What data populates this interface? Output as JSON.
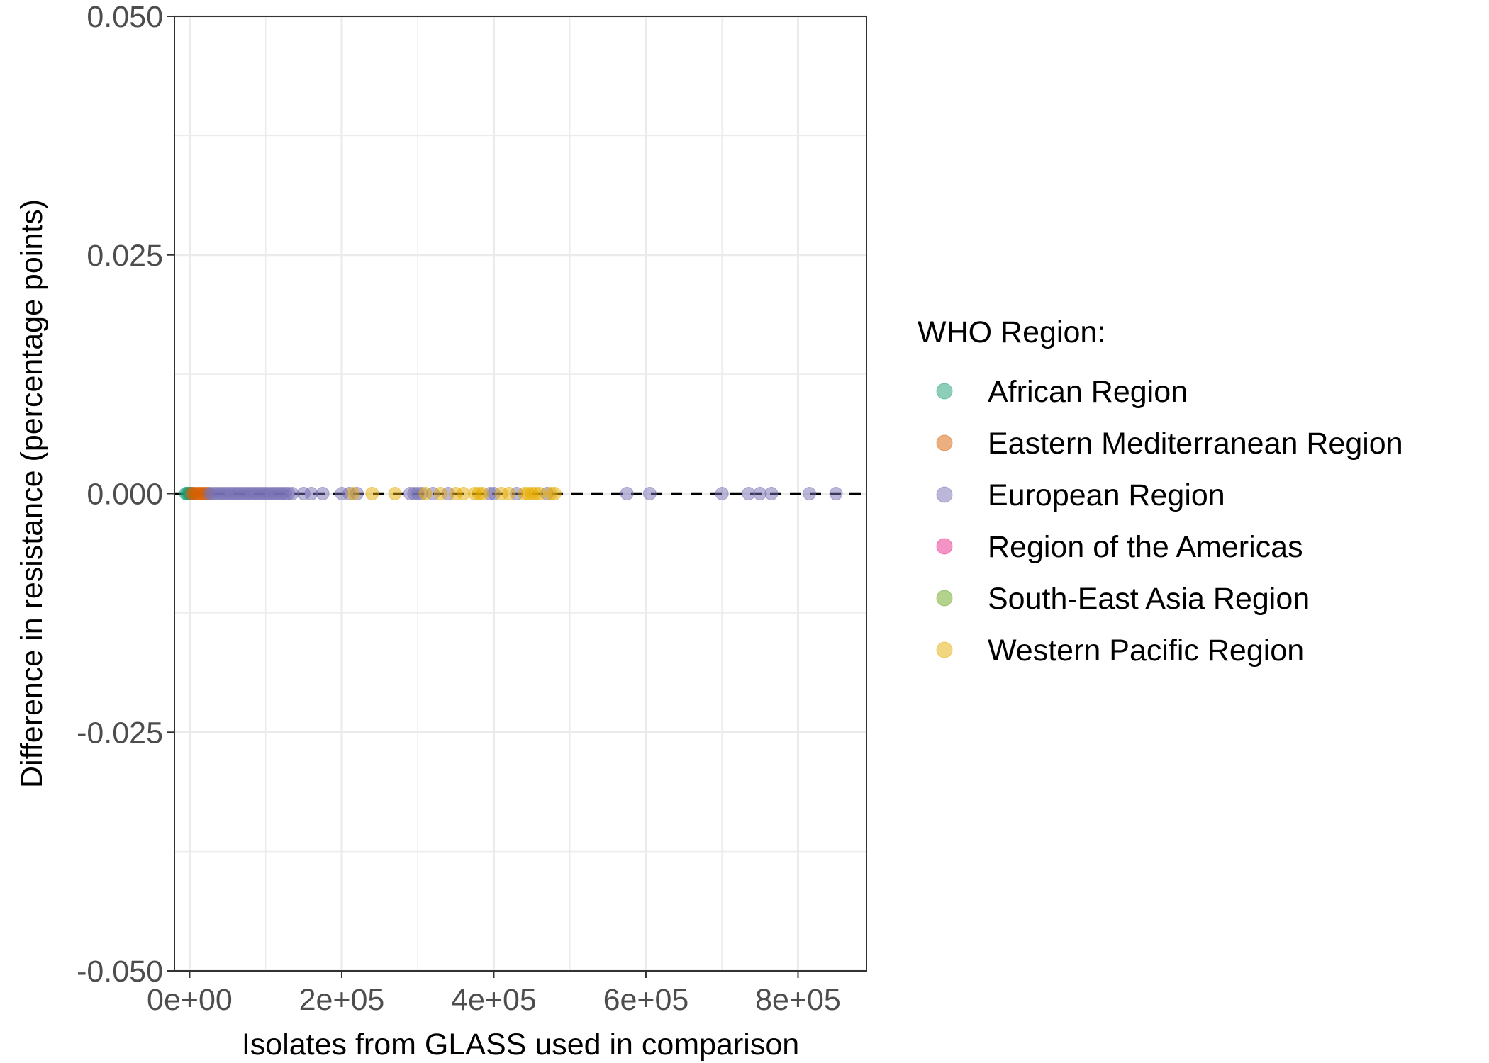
{
  "chart_data": {
    "type": "scatter",
    "xlabel": "Isolates from GLASS used in comparison",
    "ylabel": "Difference in resistance (percentage points)",
    "xlim": [
      -20000,
      890000
    ],
    "ylim": [
      -0.05,
      0.05
    ],
    "x_ticks": [
      {
        "value": 0,
        "label": "0e+00"
      },
      {
        "value": 200000,
        "label": "2e+05"
      },
      {
        "value": 400000,
        "label": "4e+05"
      },
      {
        "value": 600000,
        "label": "6e+05"
      },
      {
        "value": 800000,
        "label": "8e+05"
      }
    ],
    "y_ticks": [
      {
        "value": 0.05,
        "label": "0.050"
      },
      {
        "value": 0.025,
        "label": "0.025"
      },
      {
        "value": 0,
        "label": "0.000"
      },
      {
        "value": -0.025,
        "label": "-0.025"
      },
      {
        "value": -0.05,
        "label": "-0.050"
      }
    ],
    "grid": true,
    "reference_line": {
      "y": 0,
      "style": "dashed",
      "color": "#000000"
    },
    "legend": {
      "title": "WHO Region:",
      "placement": "right",
      "entries": [
        {
          "label": "African Region",
          "color": "#1b9e77"
        },
        {
          "label": "Eastern Mediterranean Region",
          "color": "#d95f02"
        },
        {
          "label": "European Region",
          "color": "#7570b3"
        },
        {
          "label": "Region of the Americas",
          "color": "#e7298a"
        },
        {
          "label": "South-East Asia Region",
          "color": "#66a61e"
        },
        {
          "label": "Western Pacific Region",
          "color": "#e6ab02"
        }
      ]
    },
    "series": [
      {
        "region": "African Region",
        "color": "#1b9e77",
        "x": [
          -5000,
          -3000,
          -1000,
          500,
          1500,
          2500
        ]
      },
      {
        "region": "Eastern Mediterranean Region",
        "color": "#d95f02",
        "x": [
          3000,
          6000,
          9000,
          12000,
          15000,
          18000,
          21000,
          24000
        ]
      },
      {
        "region": "European Region",
        "color": "#7570b3",
        "x": [
          26000,
          30000,
          34000,
          38000,
          42000,
          46000,
          50000,
          54000,
          58000,
          62000,
          66000,
          70000,
          74000,
          78000,
          82000,
          86000,
          90000,
          94000,
          98000,
          102000,
          106000,
          110000,
          114000,
          118000,
          122000,
          126000,
          130000,
          135000,
          150000,
          160000,
          175000,
          200000,
          210000,
          220000,
          290000,
          295000,
          300000,
          305000,
          320000,
          340000,
          395000,
          400000,
          430000,
          470000,
          575000,
          605000,
          700000,
          735000,
          750000,
          765000,
          815000,
          850000
        ]
      },
      {
        "region": "Region of the Americas",
        "color": "#e7298a",
        "x": []
      },
      {
        "region": "South-East Asia Region",
        "color": "#66a61e",
        "x": []
      },
      {
        "region": "Western Pacific Region",
        "color": "#e6ab02",
        "x": [
          215000,
          240000,
          270000,
          310000,
          330000,
          350000,
          360000,
          375000,
          380000,
          385000,
          410000,
          420000,
          440000,
          445000,
          450000,
          455000,
          460000,
          475000,
          480000
        ]
      }
    ]
  }
}
